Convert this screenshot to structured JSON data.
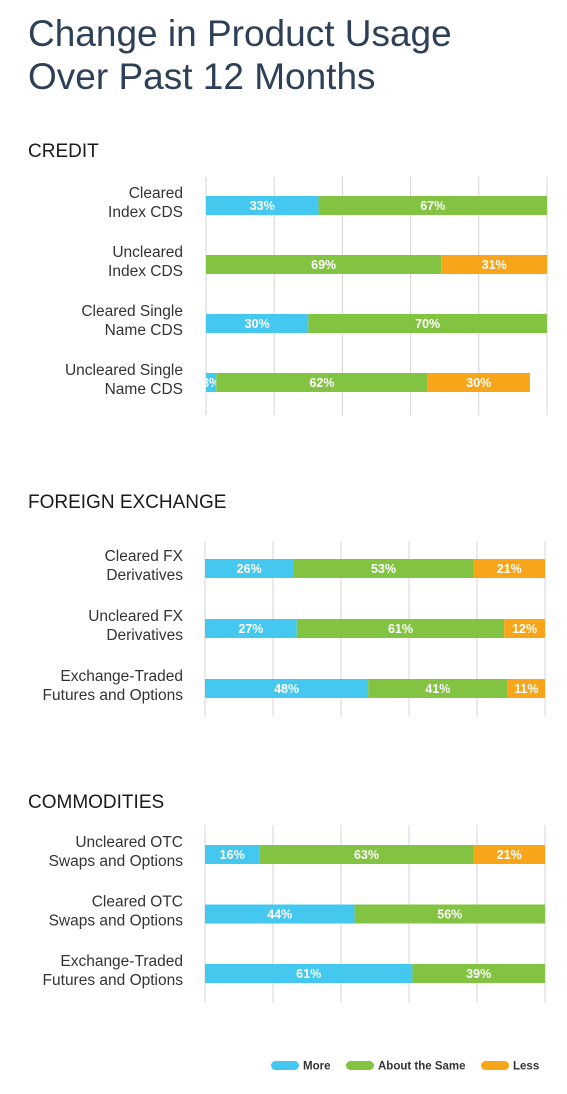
{
  "title_lines": [
    "Change in Product Usage",
    "Over Past 12 Months"
  ],
  "colors": {
    "More": "#45c8f0",
    "About the Same": "#82c341",
    "Less": "#f9a51a",
    "grid": "#d4d4d4"
  },
  "chart_data": {
    "type": "bar",
    "stacked": true,
    "orientation": "horizontal",
    "unit": "%",
    "xlim": [
      0,
      100
    ],
    "grid": true,
    "legend": {
      "position": "bottom-right",
      "entries": [
        "More",
        "About the Same",
        "Less"
      ]
    },
    "series_names": [
      "More",
      "About the Same",
      "Less"
    ],
    "groups": [
      {
        "name": "CREDIT",
        "categories": [
          {
            "label": [
              "Cleared",
              "Index CDS"
            ],
            "values": [
              33,
              67,
              0
            ]
          },
          {
            "label": [
              "Uncleared",
              "Index CDS"
            ],
            "values": [
              0,
              69,
              31
            ]
          },
          {
            "label": [
              "Cleared Single",
              "Name CDS"
            ],
            "values": [
              30,
              70,
              0
            ]
          },
          {
            "label": [
              "Uncleared Single",
              "Name CDS"
            ],
            "values": [
              3,
              62,
              30
            ]
          }
        ]
      },
      {
        "name": "FOREIGN EXCHANGE",
        "categories": [
          {
            "label": [
              "Cleared FX",
              "Derivatives"
            ],
            "values": [
              26,
              53,
              21
            ]
          },
          {
            "label": [
              "Uncleared FX",
              "Derivatives"
            ],
            "values": [
              27,
              61,
              12
            ]
          },
          {
            "label": [
              "Exchange-Traded",
              "Futures and Options"
            ],
            "values": [
              48,
              41,
              11
            ]
          }
        ]
      },
      {
        "name": "COMMODITIES",
        "categories": [
          {
            "label": [
              "Uncleared OTC",
              "Swaps and Options"
            ],
            "values": [
              16,
              63,
              21
            ]
          },
          {
            "label": [
              "Cleared OTC",
              "Swaps and Options"
            ],
            "values": [
              44,
              56,
              0
            ]
          },
          {
            "label": [
              "Exchange-Traded",
              "Futures and Options"
            ],
            "values": [
              61,
              39,
              0
            ]
          }
        ]
      }
    ]
  }
}
